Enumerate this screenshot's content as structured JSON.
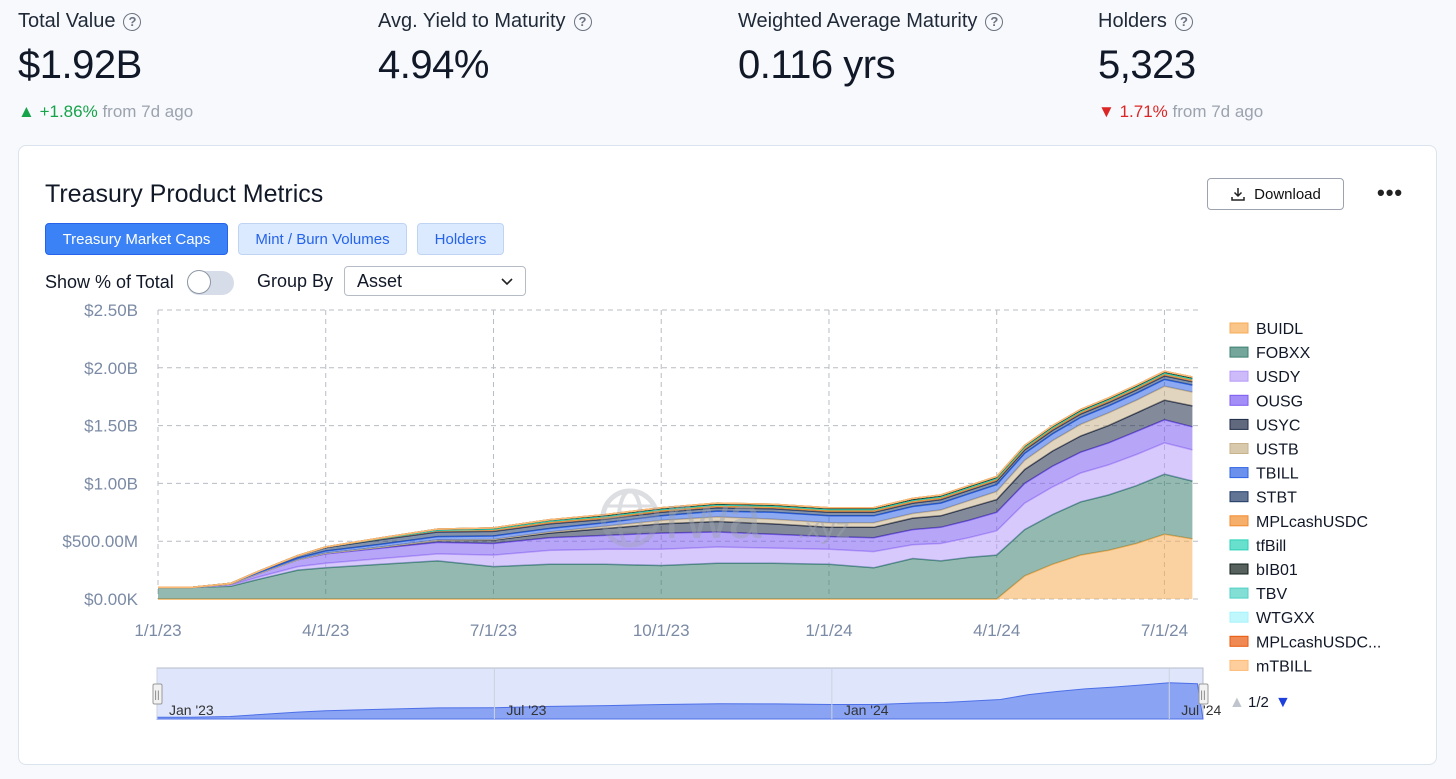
{
  "stats": [
    {
      "label": "Total Value",
      "value": "$1.92B",
      "change_arrow": "▲",
      "change": "+1.86%",
      "change_suffix": "from 7d ago",
      "direction": "up"
    },
    {
      "label": "Avg. Yield to Maturity",
      "value": "4.94%"
    },
    {
      "label": "Weighted Average Maturity",
      "value": "0.116 yrs"
    },
    {
      "label": "Holders",
      "value": "5,323",
      "change_arrow": "▼",
      "change": "1.71%",
      "change_suffix": "from 7d ago",
      "direction": "down"
    }
  ],
  "card": {
    "title": "Treasury Product Metrics",
    "download_label": "Download",
    "more_label": "•••",
    "tabs": [
      {
        "label": "Treasury Market Caps",
        "active": true
      },
      {
        "label": "Mint / Burn Volumes",
        "active": false
      },
      {
        "label": "Holders",
        "active": false
      }
    ],
    "show_pct_label": "Show % of Total",
    "show_pct_value": false,
    "group_by_label": "Group By",
    "group_by_value": "Asset",
    "watermark": "rwa",
    "watermark_suffix": ".xyz"
  },
  "chart_data": {
    "type": "area",
    "stacked": true,
    "y_tick_labels": [
      "$0.00K",
      "$500.00M",
      "$1.00B",
      "$1.50B",
      "$2.00B",
      "$2.50B"
    ],
    "x_tick_labels": [
      "1/1/23",
      "4/1/23",
      "7/1/23",
      "10/1/23",
      "1/1/24",
      "4/1/24",
      "7/1/24"
    ],
    "ylim": [
      0,
      2500
    ],
    "y_unit": "$M",
    "x_range_months": [
      0,
      18.6
    ],
    "grid": true,
    "legend_position": "right",
    "legend_page": "1/2",
    "legend_up_arrow": "▲",
    "legend_down_arrow": "▼",
    "navigator_labels": [
      "Jan '23",
      "Jul '23",
      "Jan '24",
      "Jul '24"
    ],
    "navigator_handle_label": "||",
    "x": [
      0,
      0.6,
      1.3,
      1.8,
      2.5,
      3,
      4,
      5,
      6,
      7,
      8,
      9,
      10,
      11,
      12,
      12.8,
      13.5,
      14,
      14.5,
      15,
      15.5,
      16,
      16.5,
      17,
      17.5,
      18,
      18.5
    ],
    "series": [
      {
        "name": "BUIDL",
        "color": "#f6ad55",
        "values": [
          0,
          0,
          0,
          0,
          0,
          0,
          0,
          0,
          0,
          0,
          0,
          0,
          0,
          0,
          0,
          0,
          0,
          0,
          0,
          0,
          200,
          300,
          380,
          420,
          480,
          560,
          520
        ]
      },
      {
        "name": "FOBXX",
        "color": "#3b8070",
        "values": [
          100,
          100,
          110,
          170,
          250,
          270,
          300,
          330,
          280,
          300,
          300,
          290,
          310,
          310,
          300,
          270,
          350,
          330,
          360,
          380,
          400,
          430,
          460,
          480,
          500,
          520,
          500
        ]
      },
      {
        "name": "USDY",
        "color": "#b69cf7",
        "values": [
          0,
          0,
          10,
          20,
          30,
          40,
          50,
          60,
          100,
          120,
          130,
          140,
          140,
          130,
          130,
          140,
          120,
          150,
          170,
          210,
          230,
          240,
          250,
          260,
          270,
          270,
          270
        ]
      },
      {
        "name": "OUSG",
        "color": "#7c5cf2",
        "values": [
          0,
          0,
          10,
          30,
          60,
          80,
          90,
          100,
          100,
          110,
          120,
          140,
          130,
          120,
          110,
          120,
          130,
          140,
          150,
          160,
          170,
          180,
          180,
          190,
          200,
          200,
          200
        ]
      },
      {
        "name": "USYC",
        "color": "#1e2a47",
        "values": [
          0,
          0,
          0,
          0,
          0,
          5,
          10,
          20,
          30,
          40,
          60,
          80,
          90,
          90,
          80,
          90,
          100,
          100,
          110,
          110,
          120,
          130,
          140,
          150,
          160,
          170,
          180
        ]
      },
      {
        "name": "USTB",
        "color": "#c8b28a",
        "values": [
          0,
          0,
          0,
          0,
          0,
          0,
          0,
          0,
          5,
          10,
          20,
          30,
          40,
          40,
          40,
          40,
          40,
          50,
          60,
          70,
          80,
          90,
          100,
          110,
          110,
          120,
          120
        ]
      },
      {
        "name": "TBILL",
        "color": "#2e63e6",
        "values": [
          0,
          0,
          5,
          10,
          15,
          20,
          25,
          30,
          30,
          30,
          30,
          40,
          50,
          60,
          60,
          60,
          60,
          60,
          60,
          60,
          60,
          60,
          60,
          60,
          60,
          60,
          60
        ]
      },
      {
        "name": "STBT",
        "color": "#1f3a68",
        "values": [
          0,
          0,
          0,
          10,
          20,
          30,
          40,
          40,
          40,
          40,
          30,
          30,
          30,
          30,
          30,
          30,
          30,
          30,
          30,
          30,
          30,
          30,
          30,
          30,
          30,
          30,
          30
        ]
      },
      {
        "name": "MPLcashUSDC",
        "color": "#f28b2c",
        "values": [
          0,
          0,
          0,
          0,
          0,
          5,
          10,
          15,
          15,
          15,
          15,
          15,
          15,
          15,
          15,
          15,
          15,
          15,
          15,
          15,
          15,
          15,
          15,
          15,
          15,
          15,
          15
        ]
      },
      {
        "name": "tfBill",
        "color": "#2ad1b8",
        "values": [
          0,
          0,
          0,
          0,
          0,
          0,
          0,
          0,
          5,
          10,
          10,
          10,
          10,
          10,
          10,
          10,
          10,
          10,
          10,
          10,
          10,
          10,
          10,
          10,
          10,
          10,
          10
        ]
      },
      {
        "name": "bIB01",
        "color": "#0f1f1a",
        "values": [
          0,
          0,
          0,
          0,
          0,
          0,
          5,
          10,
          10,
          10,
          10,
          10,
          10,
          10,
          10,
          10,
          10,
          10,
          10,
          10,
          10,
          10,
          10,
          10,
          10,
          10,
          10
        ]
      },
      {
        "name": "TBV",
        "color": "#4fd1c5",
        "values": [
          0,
          0,
          0,
          0,
          0,
          0,
          0,
          0,
          0,
          0,
          5,
          5,
          5,
          5,
          5,
          5,
          5,
          5,
          5,
          5,
          5,
          5,
          5,
          5,
          5,
          5,
          5
        ]
      },
      {
        "name": "WTGXX",
        "color": "#a5f3fc",
        "values": [
          0,
          0,
          0,
          0,
          0,
          0,
          0,
          0,
          0,
          0,
          0,
          0,
          0,
          0,
          0,
          0,
          0,
          0,
          0,
          0,
          0,
          0,
          0,
          0,
          0,
          0,
          0
        ]
      },
      {
        "name": "MPLcashUSDC...",
        "color": "#ea580c",
        "values": [
          0,
          0,
          0,
          0,
          0,
          0,
          0,
          0,
          0,
          0,
          0,
          0,
          0,
          0,
          0,
          0,
          0,
          0,
          0,
          0,
          0,
          0,
          0,
          0,
          0,
          0,
          0
        ]
      },
      {
        "name": "mTBILL",
        "color": "#fdba74",
        "values": [
          0,
          0,
          0,
          0,
          0,
          0,
          0,
          0,
          0,
          0,
          0,
          0,
          0,
          0,
          0,
          0,
          0,
          0,
          0,
          0,
          0,
          0,
          0,
          0,
          0,
          0,
          0
        ]
      }
    ]
  }
}
